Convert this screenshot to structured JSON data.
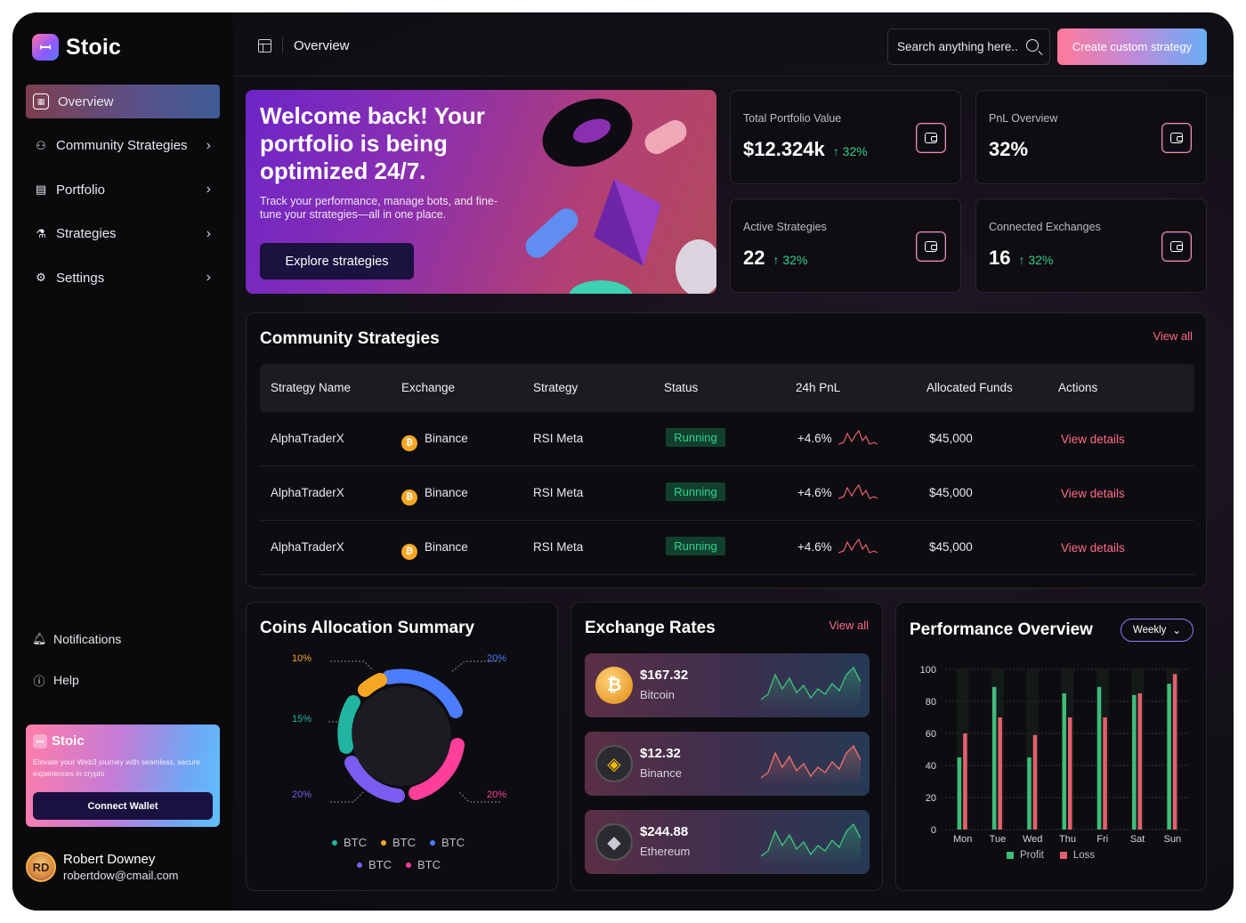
{
  "brand": {
    "name": "Stoic",
    "logo_icon": "stoic-logo-icon"
  },
  "sidebar": {
    "items": [
      {
        "label": "Overview",
        "icon": "grid-icon",
        "active": true
      },
      {
        "label": "Community Strategies",
        "icon": "users-icon"
      },
      {
        "label": "Portfolio",
        "icon": "document-icon"
      },
      {
        "label": "Strategies",
        "icon": "flask-icon"
      },
      {
        "label": "Settings",
        "icon": "gear-icon"
      }
    ],
    "bottom": [
      {
        "label": "Notifications",
        "icon": "bell-icon"
      },
      {
        "label": "Help",
        "icon": "help-icon"
      }
    ],
    "promo": {
      "title": "Stoic",
      "text": "Elevate your Web3 journey with seamless, secure experiences in crypto",
      "button": "Connect Wallet"
    },
    "user": {
      "name": "Robert Downey",
      "email": "robertdow@cmail.com",
      "initials": "RD"
    }
  },
  "header": {
    "title": "Overview",
    "search_placeholder": "Search anything here..",
    "cta": "Create custom strategy"
  },
  "hero": {
    "title": "Welcome back! Your portfolio is being optimized 24/7.",
    "subtitle": "Track your performance, manage bots, and fine-tune your strategies—all in one place.",
    "button": "Explore strategies"
  },
  "stats": [
    {
      "label": "Total Portfolio Value",
      "value": "$12.324k",
      "delta": "32%"
    },
    {
      "label": "PnL Overview",
      "value": "32%",
      "delta": ""
    },
    {
      "label": "Active Strategies",
      "value": "22",
      "delta": "32%"
    },
    {
      "label": "Connected Exchanges",
      "value": "16",
      "delta": "32%"
    }
  ],
  "community": {
    "title": "Community Strategies",
    "view_all": "View all",
    "columns": [
      "Strategy Name",
      "Exchange",
      "Strategy",
      "Status",
      "24h PnL",
      "Allocated Funds",
      "Actions"
    ],
    "rows": [
      {
        "name": "AlphaTraderX",
        "exchange": "Binance",
        "strategy": "RSI Meta",
        "status": "Running",
        "pnl": "+4.6%",
        "funds": "$45,000",
        "action": "View details"
      },
      {
        "name": "AlphaTraderX",
        "exchange": "Binance",
        "strategy": "RSI Meta",
        "status": "Running",
        "pnl": "+4.6%",
        "funds": "$45,000",
        "action": "View details"
      },
      {
        "name": "AlphaTraderX",
        "exchange": "Binance",
        "strategy": "RSI Meta",
        "status": "Running",
        "pnl": "+4.6%",
        "funds": "$45,000",
        "action": "View details"
      }
    ]
  },
  "allocation": {
    "title": "Coins Allocation Summary",
    "labels": [
      "10%",
      "20%",
      "15%",
      "20%",
      "20%"
    ],
    "legend": [
      {
        "label": "BTC",
        "color": "#1fb5a0"
      },
      {
        "label": "BTC",
        "color": "#f5a623"
      },
      {
        "label": "BTC",
        "color": "#4a7dff"
      },
      {
        "label": "BTC",
        "color": "#7b5cf0"
      },
      {
        "label": "BTC",
        "color": "#ff3f9a"
      }
    ],
    "colors": {
      "teal": "#1fb5a0",
      "orange": "#f5a623",
      "blue": "#4a7dff",
      "purple": "#7b5cf0",
      "pink": "#ff3f9a"
    }
  },
  "rates": {
    "title": "Exchange Rates",
    "view_all": "View all",
    "items": [
      {
        "price": "$167.32",
        "name": "Bitcoin",
        "icon": "bitcoin-icon",
        "symbol": "₿"
      },
      {
        "price": "$12.32",
        "name": "Binance",
        "icon": "binance-icon",
        "symbol": "◈"
      },
      {
        "price": "$244.88",
        "name": "Ethereum",
        "icon": "ethereum-icon",
        "symbol": "◆"
      }
    ]
  },
  "performance": {
    "title": "Performance Overview",
    "period": "Weekly",
    "legend_profit": "Profit",
    "legend_loss": "Loss"
  },
  "chart_data": {
    "type": "bar",
    "title": "Performance Overview",
    "categories": [
      "Mon",
      "Tue",
      "Wed",
      "Thu",
      "Fri",
      "Sat",
      "Sun"
    ],
    "ylim": [
      0,
      100
    ],
    "yticks": [
      0,
      20,
      40,
      60,
      80,
      100
    ],
    "grid": true,
    "legend": "bottom",
    "series": [
      {
        "name": "Profit",
        "color": "#3ebd7a",
        "values": [
          45,
          89,
          45,
          85,
          89,
          84,
          91
        ]
      },
      {
        "name": "Loss",
        "color": "#e5606e",
        "values": [
          60,
          70,
          59,
          70,
          70,
          85,
          97
        ]
      }
    ]
  }
}
